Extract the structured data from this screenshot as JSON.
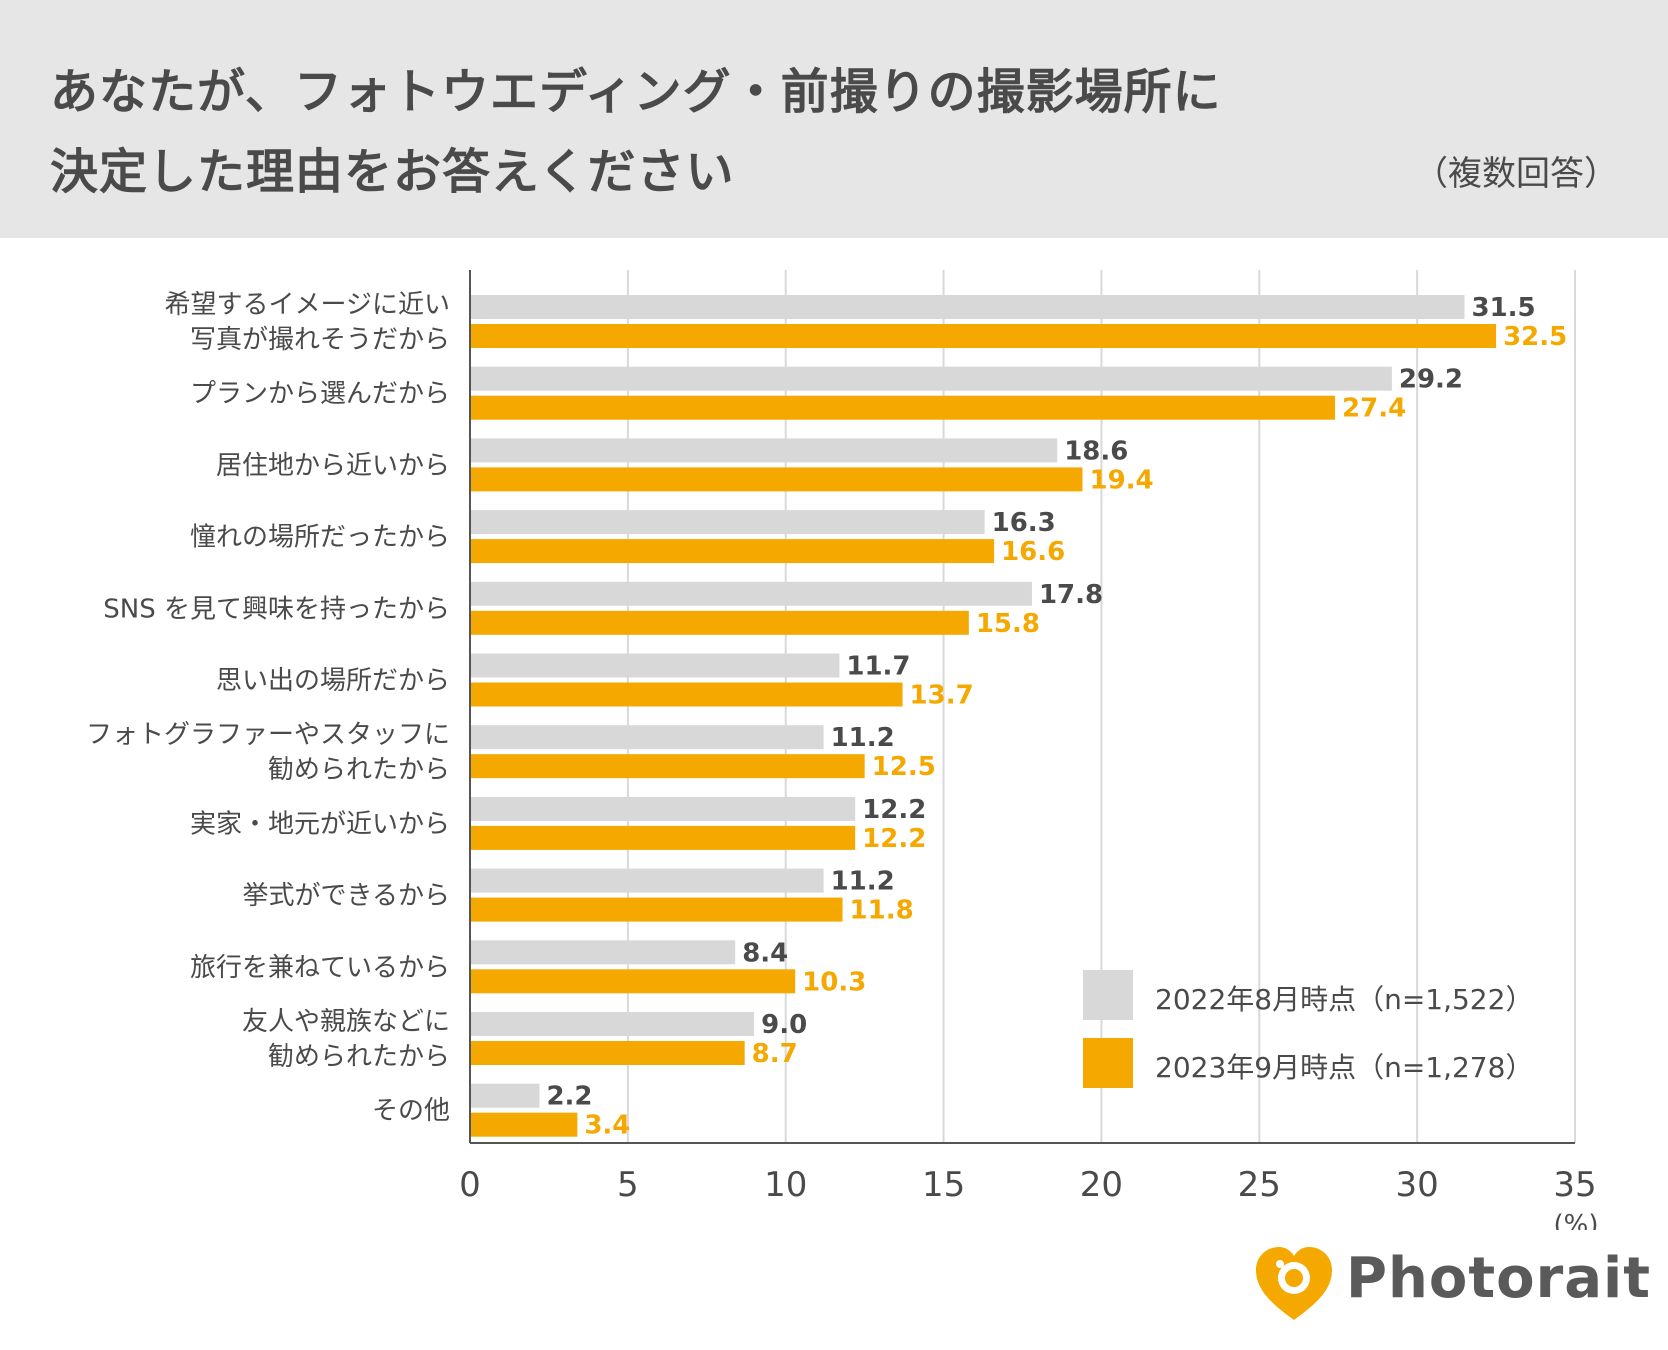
{
  "title": {
    "line1": "あなたが、フォトウエディング・前撮りの撮影場所に",
    "line2": "決定した理由をお答えください",
    "subtitle": "（複数回答）"
  },
  "colors": {
    "series_2022": "#d8d8d8",
    "series_2023": "#f5a800",
    "value_2022": "#4a4a4a",
    "axis": "#555555",
    "grid": "#d9d9d9"
  },
  "chart_data": {
    "type": "bar",
    "orientation": "horizontal",
    "title": "あなたが、フォトウエディング・前撮りの撮影場所に決定した理由をお答えください",
    "categories": [
      [
        "希望するイメージに近い",
        "写真が撮れそうだから"
      ],
      [
        "プランから選んだから"
      ],
      [
        "居住地から近いから"
      ],
      [
        "憧れの場所だったから"
      ],
      [
        "SNS を見て興味を持ったから"
      ],
      [
        "思い出の場所だから"
      ],
      [
        "フォトグラファーやスタッフに",
        "勧められたから"
      ],
      [
        "実家・地元が近いから"
      ],
      [
        "挙式ができるから"
      ],
      [
        "旅行を兼ねているから"
      ],
      [
        "友人や親族などに",
        "勧められたから"
      ],
      [
        "その他"
      ]
    ],
    "series": [
      {
        "name": "2022年8月時点（n=1,522）",
        "values": [
          31.5,
          29.2,
          18.6,
          16.3,
          17.8,
          11.7,
          11.2,
          12.2,
          11.2,
          8.4,
          9.0,
          2.2
        ]
      },
      {
        "name": "2023年9月時点（n=1,278）",
        "values": [
          32.5,
          27.4,
          19.4,
          16.6,
          15.8,
          13.7,
          12.5,
          12.2,
          11.8,
          10.3,
          8.7,
          3.4
        ]
      }
    ],
    "xlim": [
      0,
      35
    ],
    "xticks": [
      0,
      5,
      10,
      15,
      20,
      25,
      30,
      35
    ],
    "xunit": "(%)",
    "legend_position": "bottom-right",
    "grid": true
  },
  "logo": {
    "text": "Photorait"
  }
}
